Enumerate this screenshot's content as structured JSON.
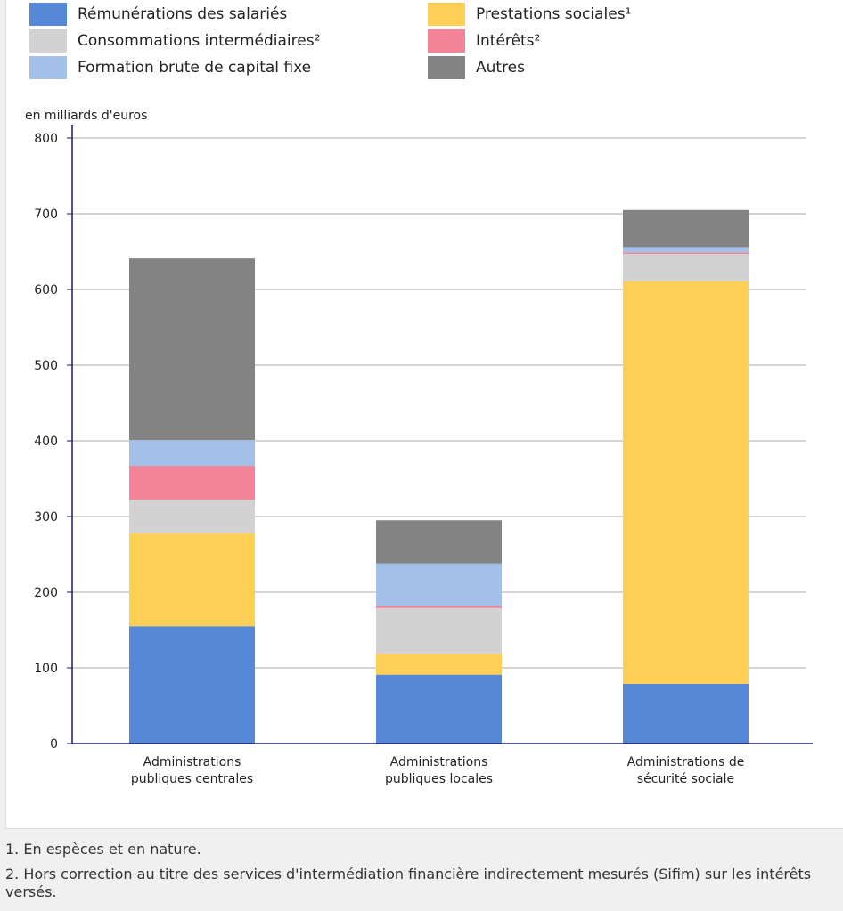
{
  "chart_data": {
    "type": "bar",
    "stacked": true,
    "ylabel": "en milliards d'euros",
    "ylim": [
      0,
      800
    ],
    "yticks": [
      0,
      100,
      200,
      300,
      400,
      500,
      600,
      700,
      800
    ],
    "grid": true,
    "legend_position": "top",
    "categories": [
      "Administrations publiques centrales",
      "Administrations publiques locales",
      "Administrations de sécurité sociale"
    ],
    "category_lines": [
      [
        "Administrations",
        "publiques centrales"
      ],
      [
        "Administrations",
        "publiques locales"
      ],
      [
        "Administrations de",
        "sécurité sociale"
      ]
    ],
    "series": [
      {
        "name": "Rémunérations des salariés",
        "color": "#5588d6",
        "values": [
          155,
          91,
          79
        ]
      },
      {
        "name": "Prestations sociales¹",
        "color": "#ffcf55",
        "values": [
          123,
          28,
          532
        ]
      },
      {
        "name": "Consommations intermédiaires²",
        "color": "#d2d2d2",
        "values": [
          44,
          60,
          36
        ]
      },
      {
        "name": "Intérêts²",
        "color": "#f28399",
        "values": [
          45,
          3,
          2
        ]
      },
      {
        "name": "Formation brute de capital fixe",
        "color": "#a3c0e9",
        "values": [
          34,
          56,
          7
        ]
      },
      {
        "name": "Autres",
        "color": "#838383",
        "values": [
          240,
          57,
          49
        ]
      }
    ]
  },
  "notes": [
    "1. En espèces et en nature.",
    "2. Hors correction au titre des services d'intermédiation financière indirectement mesurés (Sifim) sur les intérêts versés."
  ]
}
